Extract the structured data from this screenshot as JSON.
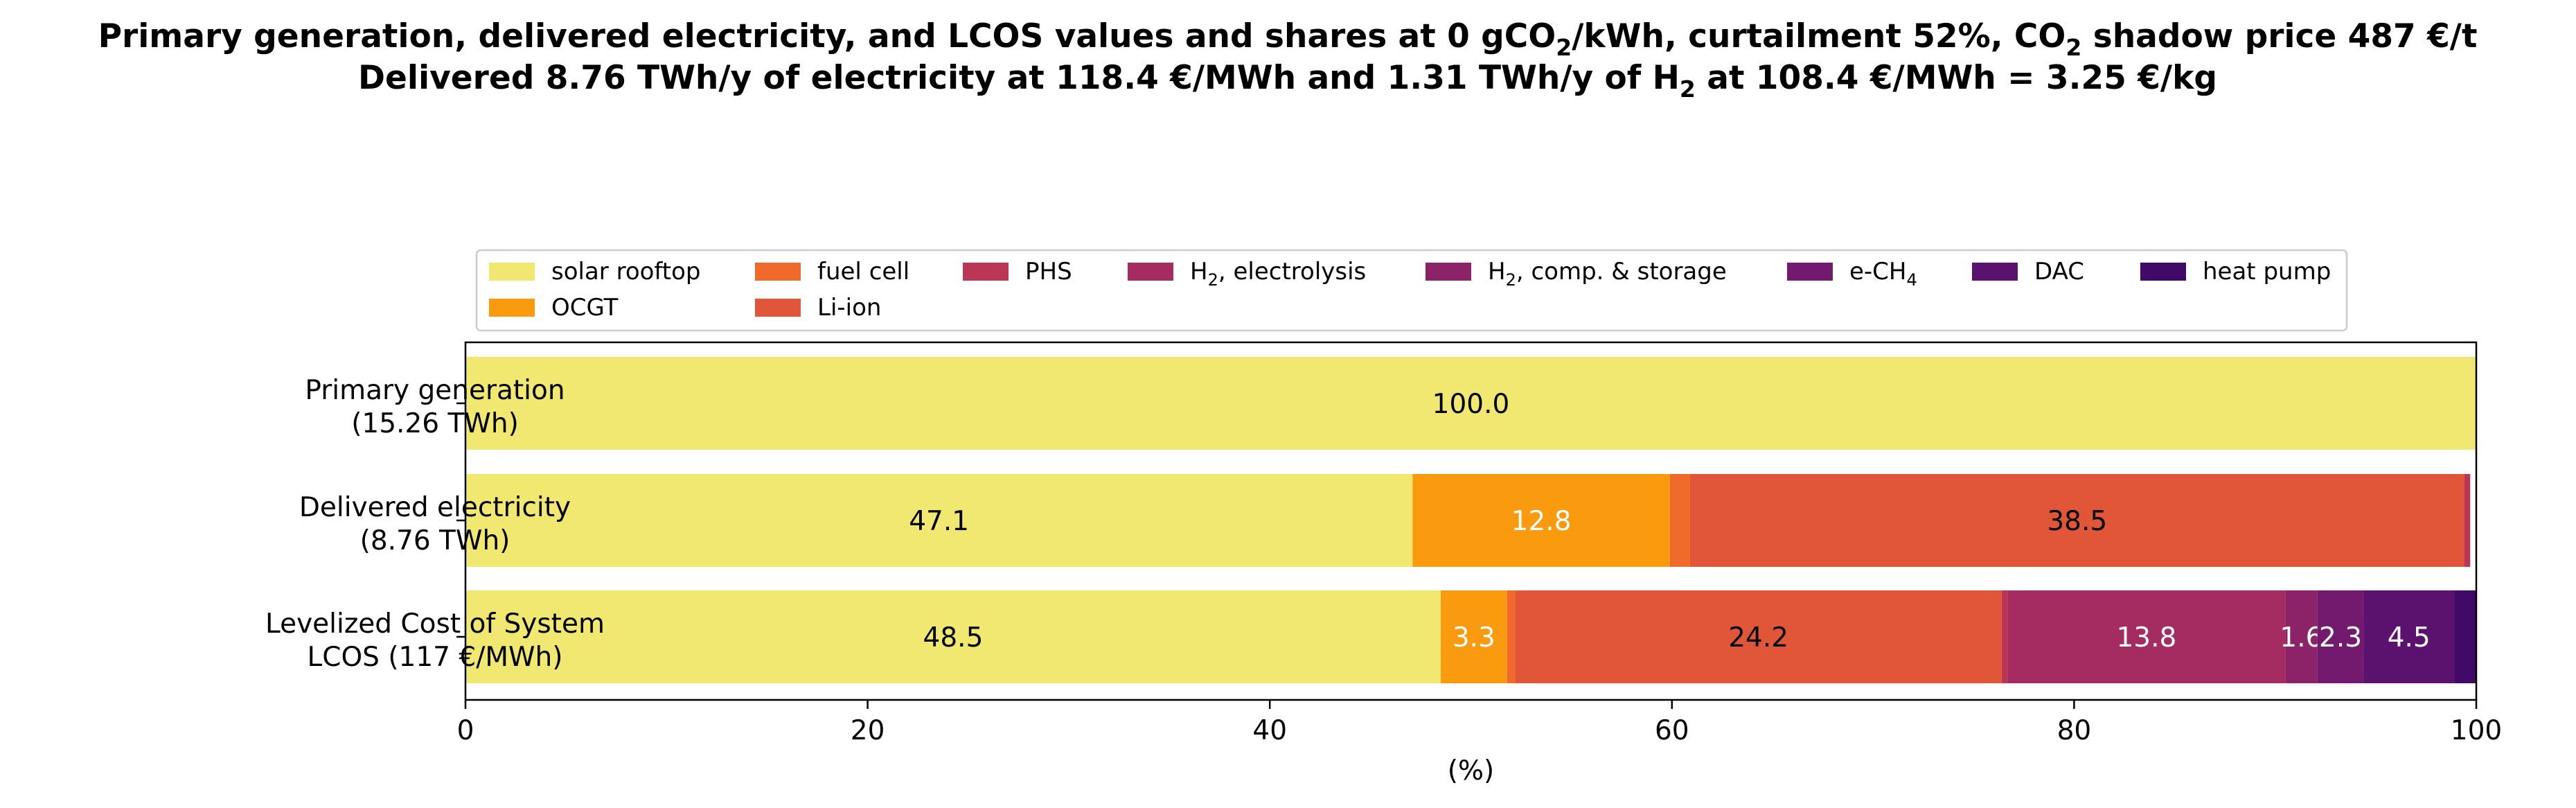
{
  "chart_data": {
    "type": "bar",
    "orientation": "horizontal-stacked",
    "title_line1": [
      {
        "t": "Primary generation, delivered electricity, and LCOS values and shares at 0 gCO"
      },
      {
        "t": "2",
        "sub": true
      },
      {
        "t": "/kWh, curtailment 52%, CO"
      },
      {
        "t": "2",
        "sub": true
      },
      {
        "t": " shadow price 487 €/t"
      }
    ],
    "title_line2": [
      {
        "t": "Delivered 8.76 TWh/y of electricity at 118.4 €/MWh and 1.31 TWh/y of H"
      },
      {
        "t": "2",
        "sub": true
      },
      {
        "t": " at 108.4 €/MWh = 3.25 €/kg"
      }
    ],
    "xlabel": "(%)",
    "xlim": [
      0,
      100
    ],
    "xticks": [
      0,
      20,
      40,
      60,
      80,
      100
    ],
    "grid": false,
    "legend_position": "top",
    "categories": [
      {
        "line1": "Primary generation",
        "line2": "(15.26 TWh)"
      },
      {
        "line1": "Delivered electricity",
        "line2": "(8.76 TWh)"
      },
      {
        "line1": "Levelized Cost of System",
        "line2": "LCOS  (117 €/MWh)"
      }
    ],
    "series": [
      {
        "name": [
          {
            "t": "solar rooftop"
          }
        ],
        "color": "#f0e870",
        "label_color": "#000000",
        "values": [
          100.0,
          47.1,
          48.5
        ],
        "labels": [
          "100.0",
          "47.1",
          "48.5"
        ]
      },
      {
        "name": [
          {
            "t": "OCGT"
          }
        ],
        "color": "#fa9a0e",
        "label_color": "#ffffff",
        "values": [
          0,
          12.8,
          3.3
        ],
        "labels": [
          "",
          "12.8",
          "3.3"
        ]
      },
      {
        "name": [
          {
            "t": "fuel cell"
          }
        ],
        "color": "#ef6a2b",
        "label_color": "#ffffff",
        "values": [
          0,
          1.0,
          0.4
        ],
        "labels": [
          "",
          "",
          ""
        ]
      },
      {
        "name": [
          {
            "t": "Li-ion"
          }
        ],
        "color": "#e15539",
        "label_color": "#000000",
        "values": [
          0,
          38.5,
          24.2
        ],
        "labels": [
          "",
          "38.5",
          "24.2"
        ]
      },
      {
        "name": [
          {
            "t": "PHS"
          }
        ],
        "color": "#bb3654",
        "label_color": "#ffffff",
        "values": [
          0,
          0.3,
          0.3
        ],
        "labels": [
          "",
          "",
          ""
        ]
      },
      {
        "name": [
          {
            "t": "H"
          },
          {
            "t": "2",
            "sub": true
          },
          {
            "t": ", electrolysis"
          }
        ],
        "color": "#a42c60",
        "label_color": "#ffffff",
        "values": [
          0,
          0,
          13.8
        ],
        "labels": [
          "",
          "",
          "13.8"
        ]
      },
      {
        "name": [
          {
            "t": "H"
          },
          {
            "t": "2",
            "sub": true
          },
          {
            "t": ", comp. & storage"
          }
        ],
        "color": "#8c2369",
        "label_color": "#ffffff",
        "values": [
          0,
          0,
          1.6
        ],
        "labels": [
          "",
          "",
          "1.6"
        ]
      },
      {
        "name": [
          {
            "t": "e-CH"
          },
          {
            "t": "4",
            "sub": true
          }
        ],
        "color": "#741a6e",
        "label_color": "#ffffff",
        "values": [
          0,
          0,
          2.3
        ],
        "labels": [
          "",
          "",
          "2.3"
        ]
      },
      {
        "name": [
          {
            "t": "DAC"
          }
        ],
        "color": "#5b116e",
        "label_color": "#ffffff",
        "values": [
          0,
          0,
          4.5
        ],
        "labels": [
          "",
          "",
          "4.5"
        ]
      },
      {
        "name": [
          {
            "t": "heat pump"
          }
        ],
        "color": "#420a68",
        "label_color": "#ffffff",
        "values": [
          0,
          0,
          1.1
        ],
        "labels": [
          "",
          "",
          ""
        ]
      }
    ]
  }
}
